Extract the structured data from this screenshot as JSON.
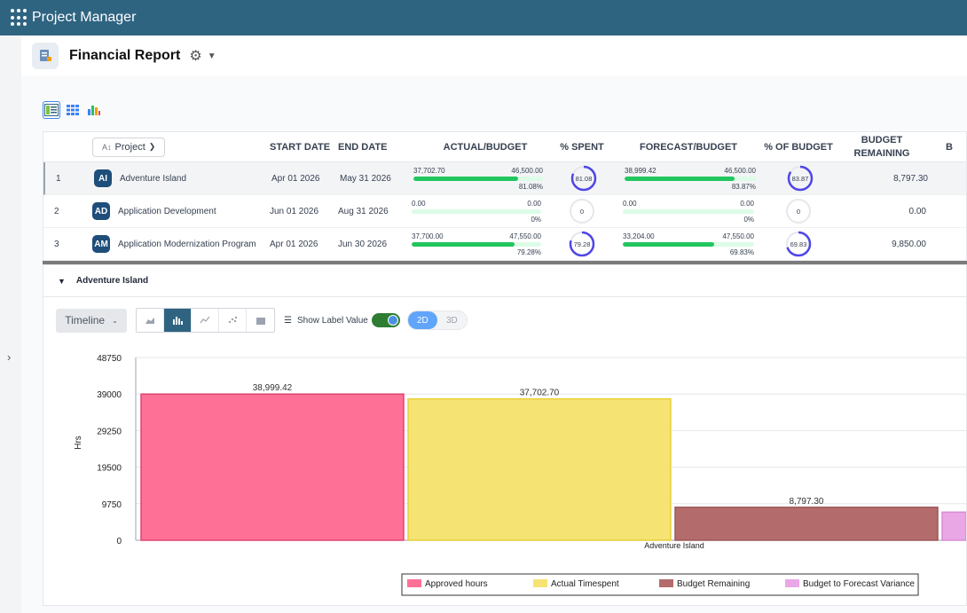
{
  "app": {
    "title": "Project Manager"
  },
  "report": {
    "title": "Financial Report"
  },
  "grid": {
    "headers": {
      "project": "Project",
      "start": "START DATE",
      "end": "END DATE",
      "actual_budget": "ACTUAL/BUDGET",
      "spent": "% SPENT",
      "forecast_budget": "FORECAST/BUDGET",
      "of_budget": "% OF BUDGET",
      "remaining_1": "BUDGET",
      "remaining_2": "REMAINING",
      "more": "B"
    },
    "rows": [
      {
        "num": "1",
        "initials": "AI",
        "name": "Adventure Island",
        "start": "Apr 01 2026",
        "end": "May 31 2026",
        "ab_actual": "37,702.70",
        "ab_budget": "46,500.00",
        "ab_pct_label": "81.08%",
        "ab_pct": 81.08,
        "spent": "81.08",
        "spent_val": 81.08,
        "fb_forecast": "38,999.42",
        "fb_budget": "46,500.00",
        "fb_pct_label": "83.87%",
        "fb_pct": 83.87,
        "of_budget": "83.87",
        "of_budget_val": 83.87,
        "remaining": "8,797.30"
      },
      {
        "num": "2",
        "initials": "AD",
        "name": "Application Development",
        "start": "Jun 01 2026",
        "end": "Aug 31 2026",
        "ab_actual": "0.00",
        "ab_budget": "0.00",
        "ab_pct_label": "0%",
        "ab_pct": 0,
        "spent": "0",
        "spent_val": 0,
        "fb_forecast": "0.00",
        "fb_budget": "0.00",
        "fb_pct_label": "0%",
        "fb_pct": 0,
        "of_budget": "0",
        "of_budget_val": 0,
        "remaining": "0.00"
      },
      {
        "num": "3",
        "initials": "AM",
        "name": "Application Modernization Program",
        "start": "Apr 01 2026",
        "end": "Jun 30 2026",
        "ab_actual": "37,700.00",
        "ab_budget": "47,550.00",
        "ab_pct_label": "79.28%",
        "ab_pct": 79.28,
        "spent": "79.28",
        "spent_val": 79.28,
        "fb_forecast": "33,204.00",
        "fb_budget": "47,550.00",
        "fb_pct_label": "69.83%",
        "fb_pct": 69.83,
        "of_budget": "69.83",
        "of_budget_val": 69.83,
        "remaining": "9,850.00"
      }
    ]
  },
  "panel": {
    "title": "Adventure Island",
    "timeline_label": "Timeline",
    "show_label": "Show Label Value",
    "dim_2d": "2D",
    "dim_3d": "3D"
  },
  "colors": {
    "topbar": "#2f6481",
    "approved": "#ff7096",
    "actual": "#f5e473",
    "remaining": "#b46b6b",
    "variance": "#e9a7e6"
  },
  "chart_data": {
    "type": "bar",
    "categories": [
      "Adventure Island"
    ],
    "ylabel": "Hrs",
    "ylim": [
      0,
      48750
    ],
    "yticks": [
      "0",
      "9750",
      "19500",
      "29250",
      "39000",
      "48750"
    ],
    "series": [
      {
        "name": "Approved hours",
        "values": [
          38999.42
        ],
        "label": "38,999.42",
        "color": "#ff7096"
      },
      {
        "name": "Actual Timespent",
        "values": [
          37702.7
        ],
        "label": "37,702.70",
        "color": "#f5e473"
      },
      {
        "name": "Budget Remaining",
        "values": [
          8797.3
        ],
        "label": "8,797.30",
        "color": "#b46b6b"
      },
      {
        "name": "Budget to Forecast Variance",
        "values": [
          7500.58
        ],
        "color": "#e9a7e6"
      }
    ],
    "legend": "bottom"
  }
}
